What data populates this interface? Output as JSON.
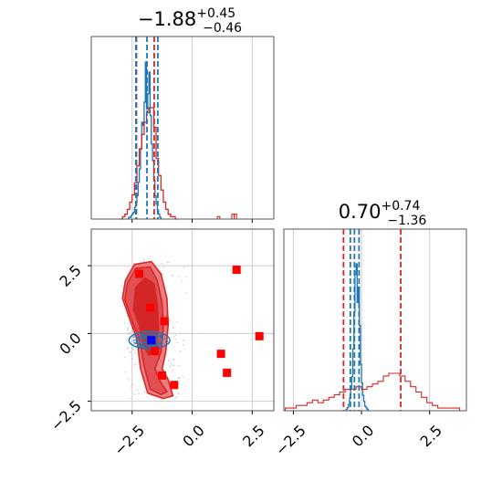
{
  "chart_data": [
    {
      "type": "histogram",
      "panel": "top-left",
      "title": {
        "main": "−1.88",
        "sup": "+0.45",
        "sub": "−0.46"
      },
      "xlim": [
        -4.2,
        3.4
      ],
      "grid": true,
      "show_tick_labels": false,
      "xticks": [
        -2.5,
        0.0,
        2.5
      ],
      "series": [
        {
          "color": "#1f77b4",
          "bin_edges_start": -2.7,
          "bin_width": 0.05,
          "counts": [
            0,
            1,
            1,
            2,
            3,
            4,
            7,
            10,
            14,
            22,
            30,
            42,
            58,
            56,
            70,
            94,
            66,
            75,
            88,
            62,
            45,
            35,
            23,
            14,
            9,
            5,
            3,
            1,
            0
          ]
        },
        {
          "color": "#d62728",
          "bin_edges_start": -3.0,
          "bin_width": 0.1,
          "counts": [
            0,
            1,
            2,
            4,
            7,
            10,
            15,
            22,
            29,
            35,
            40,
            44,
            46,
            46,
            38,
            25,
            18,
            12,
            7,
            4,
            2,
            1,
            1,
            0
          ],
          "tail": [
            {
              "x": 1.1,
              "count": 1
            },
            {
              "x": 1.7,
              "count": 2
            },
            {
              "x": 1.8,
              "count": 2
            }
          ]
        }
      ],
      "quantile_lines": {
        "blue": [
          -2.34,
          -1.88,
          -1.43
        ],
        "red": [
          -2.32,
          -1.58
        ]
      }
    },
    {
      "type": "scatter+contour",
      "panel": "bottom-left",
      "xlim": [
        -4.2,
        3.4
      ],
      "ylim": [
        -2.85,
        3.85
      ],
      "grid": true,
      "xticks": [
        -2.5,
        0.0,
        2.5
      ],
      "xtick_labels": [
        "−2.5",
        "0.0",
        "2.5"
      ],
      "yticks": [
        -2.5,
        0.0,
        2.5
      ],
      "ytick_labels": [
        "−2.5",
        "0.0",
        "2.5"
      ],
      "red_contours": [
        {
          "fill": "#ee7d7f",
          "points": [
            [
              -2.78,
              1.95
            ],
            [
              -2.4,
              2.55
            ],
            [
              -1.7,
              2.65
            ],
            [
              -1.3,
              2.2
            ],
            [
              -1.05,
              1.3
            ],
            [
              -1.0,
              0.3
            ],
            [
              -1.1,
              -0.7
            ],
            [
              -1.25,
              -1.3
            ],
            [
              -1.0,
              -1.7
            ],
            [
              -0.8,
              -2.3
            ],
            [
              -1.2,
              -2.4
            ],
            [
              -1.85,
              -2.2
            ],
            [
              -2.15,
              -1.3
            ],
            [
              -2.3,
              -0.2
            ],
            [
              -2.55,
              0.4
            ],
            [
              -2.9,
              1.3
            ]
          ]
        },
        {
          "fill": "#e15052",
          "points": [
            [
              -2.7,
              1.85
            ],
            [
              -2.35,
              2.4
            ],
            [
              -1.75,
              2.45
            ],
            [
              -1.45,
              1.95
            ],
            [
              -1.25,
              1.1
            ],
            [
              -1.2,
              0.2
            ],
            [
              -1.3,
              -0.7
            ],
            [
              -1.55,
              -1.3
            ],
            [
              -1.35,
              -1.75
            ],
            [
              -1.05,
              -2.15
            ],
            [
              -1.3,
              -2.25
            ],
            [
              -1.75,
              -2.05
            ],
            [
              -2.0,
              -1.2
            ],
            [
              -2.2,
              -0.2
            ],
            [
              -2.45,
              0.35
            ],
            [
              -2.8,
              1.25
            ]
          ]
        },
        {
          "fill": "#d42628",
          "points": [
            [
              -2.35,
              1.7
            ],
            [
              -1.95,
              2.05
            ],
            [
              -1.6,
              1.85
            ],
            [
              -1.45,
              1.1
            ],
            [
              -1.4,
              0.2
            ],
            [
              -1.5,
              -0.5
            ],
            [
              -1.8,
              -0.8
            ],
            [
              -2.05,
              -0.4
            ],
            [
              -2.2,
              0.3
            ],
            [
              -2.45,
              0.9
            ]
          ]
        }
      ],
      "blue_contours": [
        {
          "cx": -1.78,
          "cy": -0.25,
          "rx": 0.85,
          "ry": 0.32
        },
        {
          "cx": -1.78,
          "cy": -0.25,
          "rx": 0.55,
          "ry": 0.22
        },
        {
          "cx": -1.78,
          "cy": -0.25,
          "rx": 0.3,
          "ry": 0.12
        }
      ],
      "red_points": [
        [
          -2.2,
          2.2
        ],
        [
          -1.75,
          0.95
        ],
        [
          -1.15,
          0.45
        ],
        [
          -1.55,
          -0.65
        ],
        [
          -1.25,
          -1.55
        ],
        [
          -0.75,
          -1.9
        ],
        [
          1.2,
          -0.75
        ],
        [
          1.45,
          -1.45
        ],
        [
          1.85,
          2.35
        ],
        [
          2.8,
          -0.1
        ]
      ],
      "blue_point": [
        -1.7,
        -0.25
      ]
    },
    {
      "type": "histogram",
      "panel": "bottom-right",
      "title": {
        "main": "0.70",
        "sup": "+0.74",
        "sub": "−1.36"
      },
      "xlim": [
        -2.85,
        3.85
      ],
      "grid": true,
      "xticks": [
        -2.5,
        0.0,
        2.5
      ],
      "xtick_labels": [
        "−2.5",
        "0.0",
        "2.5"
      ],
      "series": [
        {
          "color": "#1f77b4",
          "bin_edges_start": -0.6,
          "bin_width": 0.04,
          "counts": [
            0,
            1,
            2,
            4,
            8,
            14,
            22,
            40,
            64,
            88,
            95,
            70,
            80,
            55,
            30,
            18,
            10,
            6,
            3,
            2,
            1,
            0
          ]
        },
        {
          "color": "#d62728",
          "bin_edges_start": -2.8,
          "bin_width": 0.2,
          "counts": [
            1,
            1,
            2,
            2,
            3,
            4,
            3,
            4,
            5,
            6,
            7,
            8,
            8,
            9,
            8,
            9,
            10,
            11,
            13,
            14,
            14,
            13,
            11,
            9,
            7,
            5,
            3,
            2,
            1,
            1,
            1,
            1,
            0
          ]
        }
      ],
      "quantile_lines": {
        "blue": [
          -0.41,
          -0.26,
          -0.09
        ],
        "red": [
          -0.66,
          1.44
        ]
      }
    }
  ],
  "colors": {
    "blue": "#1f77b4",
    "red": "#d62728",
    "axes": "#555555",
    "grid": "#cccccc"
  }
}
